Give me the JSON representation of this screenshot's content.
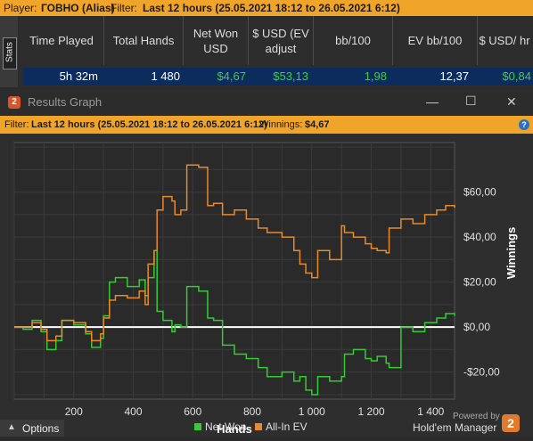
{
  "top": {
    "player_label": "Player:",
    "player_name": "ГОВНО (Alias)",
    "filter_label": "Filter:",
    "filter_value": "Last 12 hours (25.05.2021 18:12 to 26.05.2021 6:12)"
  },
  "stats_tab": "Stats",
  "stats": {
    "headers": [
      "Time Played",
      "Total Hands",
      "Net Won USD",
      "$ USD (EV adjust",
      "bb/100",
      "EV bb/100",
      "$ USD/ hr"
    ],
    "values": [
      "5h 32m",
      "1 480",
      "$4,67",
      "$53,13",
      "1,98",
      "12,37",
      "$0,84"
    ]
  },
  "window": {
    "title": "Results Graph",
    "app_badge": "2",
    "filter_label": "Filter:",
    "filter_value": "Last 12 hours (25.05.2021 18:12 to 26.05.2021 6:12)",
    "winnings_label": "Winnings:",
    "winnings_value": "$4,67",
    "help_icon": "?",
    "minimize": "—",
    "maximize": "☐",
    "close": "✕"
  },
  "footer": {
    "options": "Options",
    "powered_by": "Powered by",
    "brand": "Hold'em Manager",
    "brand_badge": "2"
  },
  "colors": {
    "orange": "#f0a42a",
    "net_won": "#33cc33",
    "all_in_ev": "#e8892b",
    "blue_row": "#0d2c5e"
  },
  "chart_data": {
    "type": "line",
    "xlabel": "Hands",
    "ylabel": "Winnings",
    "xlim": [
      0,
      1480
    ],
    "ylim": [
      -32,
      82
    ],
    "x_ticks": [
      200,
      400,
      600,
      800,
      1000,
      1200,
      1400
    ],
    "x_tick_labels": [
      "200",
      "400",
      "600",
      "800",
      "1 000",
      "1 200",
      "1 400"
    ],
    "y_ticks": [
      -20,
      0,
      20,
      40,
      60
    ],
    "y_tick_labels": [
      "-$20,00",
      "$0,00",
      "$20,00",
      "$40,00",
      "$60,00"
    ],
    "legend": [
      "Net Won",
      "All-In EV"
    ],
    "legend_position": "bottom",
    "series": [
      {
        "name": "Net Won",
        "color": "#33cc33",
        "x": [
          0,
          30,
          60,
          90,
          110,
          140,
          160,
          200,
          240,
          260,
          290,
          300,
          320,
          340,
          380,
          420,
          440,
          450,
          470,
          480,
          500,
          530,
          540,
          560,
          580,
          600,
          620,
          650,
          670,
          700,
          740,
          780,
          820,
          850,
          900,
          940,
          960,
          980,
          1000,
          1020,
          1060,
          1100,
          1110,
          1140,
          1180,
          1200,
          1220,
          1250,
          1260,
          1300,
          1340,
          1380,
          1420,
          1450,
          1480
        ],
        "y": [
          0,
          -1,
          3,
          -2,
          -10,
          -6,
          3,
          1,
          -3,
          -9,
          -5,
          5,
          20,
          22,
          18,
          21,
          14,
          22,
          34,
          7,
          3,
          -2,
          1,
          0,
          18,
          18,
          16,
          4,
          3,
          -8,
          -12,
          -14,
          -18,
          -22,
          -20,
          -24,
          -22,
          -28,
          -30,
          -22,
          -24,
          -22,
          -12,
          -10,
          -14,
          -15,
          -13,
          -16,
          -18,
          0,
          -2,
          2,
          4,
          6,
          5
        ]
      },
      {
        "name": "All-In EV",
        "color": "#e8892b",
        "x": [
          0,
          30,
          60,
          90,
          110,
          140,
          160,
          200,
          240,
          260,
          290,
          300,
          320,
          340,
          380,
          420,
          440,
          450,
          470,
          480,
          500,
          530,
          540,
          560,
          580,
          600,
          620,
          650,
          670,
          700,
          740,
          780,
          820,
          850,
          900,
          940,
          960,
          980,
          1000,
          1020,
          1060,
          1100,
          1110,
          1140,
          1180,
          1200,
          1220,
          1250,
          1260,
          1300,
          1340,
          1380,
          1420,
          1450,
          1480
        ],
        "y": [
          0,
          0,
          2,
          -1,
          -6,
          -4,
          3,
          2,
          -2,
          -6,
          -3,
          4,
          12,
          14,
          13,
          16,
          10,
          28,
          34,
          52,
          58,
          56,
          50,
          52,
          72,
          72,
          71,
          54,
          55,
          50,
          52,
          48,
          44,
          42,
          40,
          34,
          28,
          24,
          22,
          34,
          30,
          45,
          42,
          40,
          37,
          35,
          34,
          33,
          44,
          48,
          46,
          50,
          52,
          54,
          53
        ]
      }
    ]
  }
}
